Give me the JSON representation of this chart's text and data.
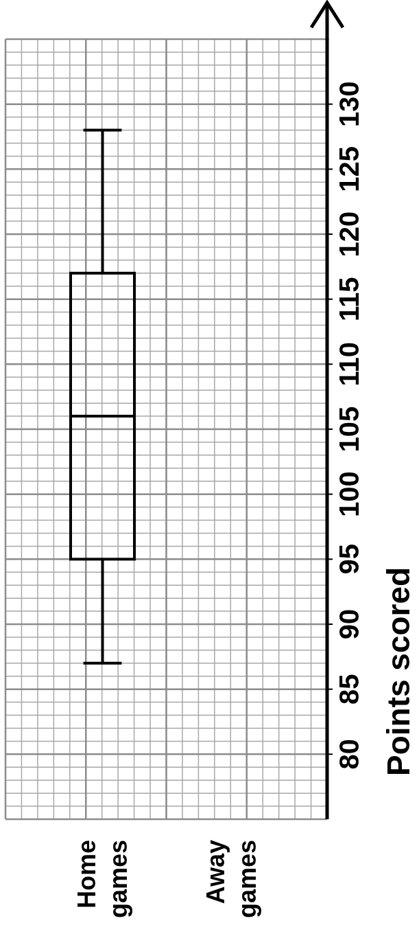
{
  "chart_data": {
    "type": "box",
    "categories": [
      "Home games",
      "Away games"
    ],
    "boxes": [
      {
        "low": 87,
        "q1": 95,
        "median": 106,
        "q3": 117,
        "high": 128
      },
      null
    ],
    "color": "#000000",
    "ylabel": "Points scored",
    "ylim": [
      75,
      135
    ],
    "yticks": [
      80,
      85,
      90,
      95,
      100,
      105,
      110,
      115,
      120,
      125,
      130
    ],
    "grid": true
  }
}
